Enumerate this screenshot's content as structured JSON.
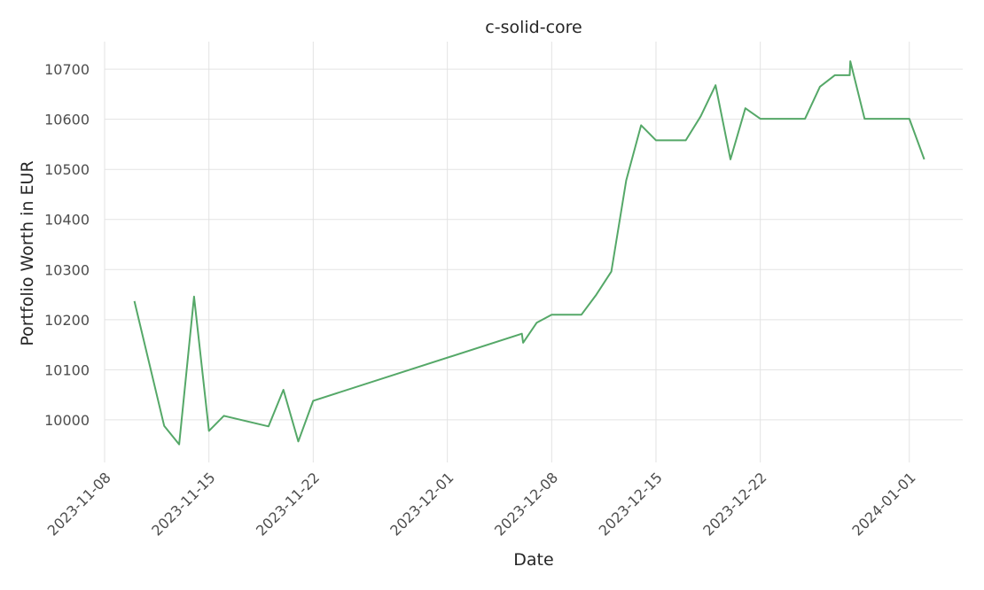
{
  "chart_data": {
    "type": "line",
    "title": "c-solid-core",
    "xlabel": "Date",
    "ylabel": "Portfolio Worth in EUR",
    "x_ticks": [
      "2023-11-08",
      "2023-11-15",
      "2023-11-22",
      "2023-12-01",
      "2023-12-08",
      "2023-12-15",
      "2023-12-22",
      "2024-01-01"
    ],
    "y_ticks": [
      10000,
      10100,
      10200,
      10300,
      10400,
      10500,
      10600,
      10700
    ],
    "xlim": [
      "2023-11-08",
      "2024-01-04 14:00"
    ],
    "ylim": [
      9915,
      10755
    ],
    "grid": true,
    "legend": "none",
    "color": "#55a868",
    "series": [
      {
        "x": [
          "2023-11-10",
          "2023-11-12",
          "2023-11-13",
          "2023-11-14",
          "2023-11-15",
          "2023-11-16",
          "2023-11-19",
          "2023-11-20",
          "2023-11-21",
          "2023-11-22",
          "2023-12-06",
          "2023-12-06 02:00",
          "2023-12-07",
          "2023-12-08",
          "2023-12-09",
          "2023-12-10",
          "2023-12-11",
          "2023-12-12",
          "2023-12-13",
          "2023-12-14",
          "2023-12-15",
          "2023-12-16",
          "2023-12-17",
          "2023-12-18",
          "2023-12-19",
          "2023-12-20",
          "2023-12-21",
          "2023-12-22",
          "2023-12-23",
          "2023-12-24",
          "2023-12-25",
          "2023-12-26",
          "2023-12-27",
          "2023-12-28",
          "2023-12-28 01:00",
          "2023-12-29",
          "2023-12-30",
          "2023-12-31",
          "2024-01-01",
          "2024-01-02"
        ],
        "y": [
          10237,
          9988,
          9951,
          10246,
          9978,
          10008,
          9987,
          10060,
          9957,
          10038,
          10172,
          10154,
          10194,
          10210,
          10210,
          10210,
          10250,
          10296,
          10478,
          10588,
          10558,
          10558,
          10558,
          10606,
          10668,
          10520,
          10622,
          10601,
          10601,
          10601,
          10601,
          10665,
          10688,
          10688,
          10716,
          10601,
          10601,
          10601,
          10601,
          10520
        ]
      }
    ]
  }
}
